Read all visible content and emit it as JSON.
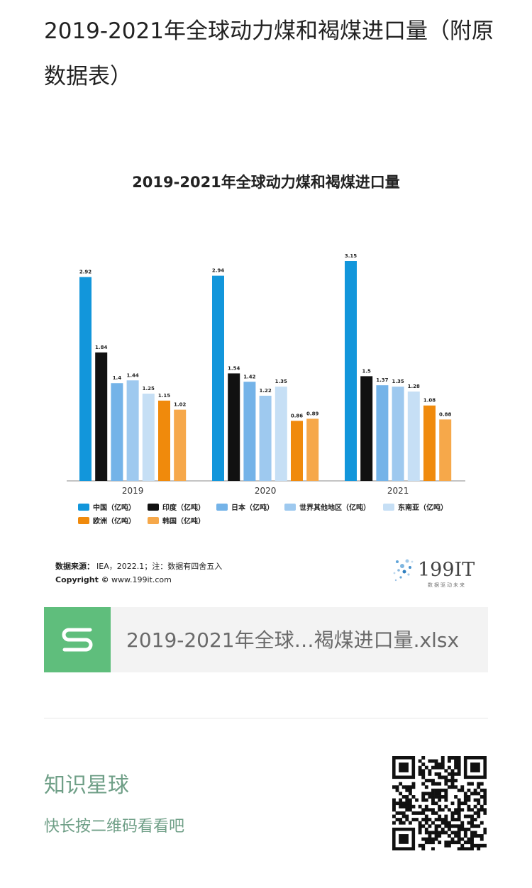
{
  "article": {
    "title": "2019-2021年全球动力煤和褐煤进口量（附原数据表）"
  },
  "chart_data": {
    "type": "bar",
    "title": "2019-2021年全球动力煤和褐煤进口量",
    "categories": [
      "2019",
      "2020",
      "2021"
    ],
    "series": [
      {
        "name": "中国（亿吨）",
        "color": "#1296db",
        "values": [
          2.92,
          2.94,
          3.15
        ]
      },
      {
        "name": "印度（亿吨）",
        "color": "#111111",
        "values": [
          1.84,
          1.54,
          1.5
        ]
      },
      {
        "name": "日本（亿吨）",
        "color": "#74b3e8",
        "values": [
          1.4,
          1.42,
          1.37
        ]
      },
      {
        "name": "世界其他地区（亿吨）",
        "color": "#9ec9ef",
        "values": [
          1.44,
          1.22,
          1.35
        ]
      },
      {
        "name": "东南亚（亿吨）",
        "color": "#c6dff5",
        "values": [
          1.25,
          1.35,
          1.28
        ]
      },
      {
        "name": "欧洲（亿吨）",
        "color": "#f08a0c",
        "values": [
          1.15,
          0.86,
          1.08
        ]
      },
      {
        "name": "韩国（亿吨）",
        "color": "#f6a84a",
        "values": [
          1.02,
          0.89,
          0.88
        ]
      }
    ],
    "ylim": [
      0,
      3.15
    ],
    "legend_position": "bottom",
    "grid": false,
    "source_label": "数据来源：",
    "source_text": "IEA，2022.1；注：数据有四舍五入",
    "copyright_label": "Copyright ©",
    "copyright_text": "www.199it.com",
    "logo_text": "199IT",
    "logo_tagline": "数据驱动未来"
  },
  "file": {
    "name": "2019-2021年全球…褐煤进口量.xlsx",
    "icon": "spreadsheet-s-icon",
    "icon_color": "#5fbe7c"
  },
  "planet": {
    "title": "知识星球",
    "hint": "快长按二维码看看吧"
  }
}
